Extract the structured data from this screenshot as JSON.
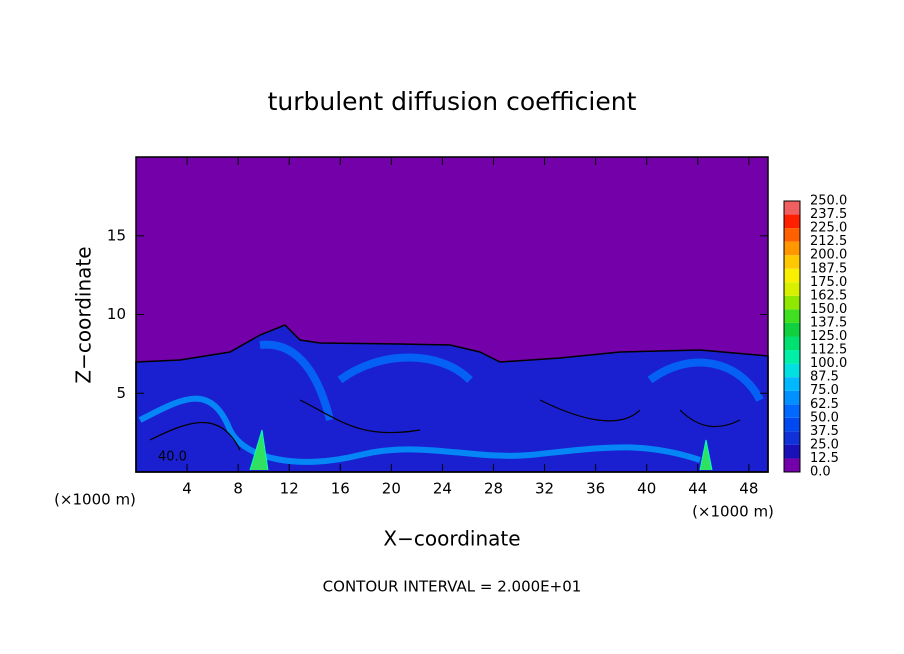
{
  "chart_data": {
    "type": "contour",
    "title": "turbulent diffusion coefficient",
    "x_label": "X−coordinate",
    "y_label": "Z−coordinate",
    "x_unit_left": "(×1000 m)",
    "x_unit_right": "(×1000 m)",
    "footer": "CONTOUR INTERVAL = 2.000E+01",
    "contour_label": "40.0",
    "xlim": [
      0,
      49.5
    ],
    "ylim": [
      0,
      20
    ],
    "xticks": [
      4,
      8,
      12,
      16,
      20,
      24,
      28,
      32,
      36,
      40,
      44,
      48
    ],
    "yticks": [
      5,
      10,
      15
    ],
    "colorbar": {
      "levels": [
        {
          "value": 0,
          "label": "0.0"
        },
        {
          "value": 12.5,
          "label": "12.5"
        },
        {
          "value": 25,
          "label": "25.0"
        },
        {
          "value": 37.5,
          "label": "37.5"
        },
        {
          "value": 50,
          "label": "50.0"
        },
        {
          "value": 62.5,
          "label": "62.5"
        },
        {
          "value": 75,
          "label": "75.0"
        },
        {
          "value": 87.5,
          "label": "87.5"
        },
        {
          "value": 100,
          "label": "100.0"
        },
        {
          "value": 112.5,
          "label": "112.5"
        },
        {
          "value": 125,
          "label": "125.0"
        },
        {
          "value": 137.5,
          "label": "137.5"
        },
        {
          "value": 150,
          "label": "150.0"
        },
        {
          "value": 162.5,
          "label": "162.5"
        },
        {
          "value": 175,
          "label": "175.0"
        },
        {
          "value": 187.5,
          "label": "187.5"
        },
        {
          "value": 200,
          "label": "200.0"
        },
        {
          "value": 212.5,
          "label": "212.5"
        },
        {
          "value": 225,
          "label": "225.0"
        },
        {
          "value": 237.5,
          "label": "237.5"
        },
        {
          "value": 250,
          "label": "250.0"
        }
      ],
      "colors": [
        "#7300a8",
        "#1a10b8",
        "#1030d8",
        "#0048f0",
        "#0068ff",
        "#0090ff",
        "#00b8ff",
        "#00e0e0",
        "#00f0a8",
        "#00e070",
        "#10d040",
        "#40e020",
        "#90e800",
        "#d8f000",
        "#f8f000",
        "#ffc800",
        "#ff9800",
        "#ff6000",
        "#ff2000",
        "#f06060"
      ]
    }
  }
}
